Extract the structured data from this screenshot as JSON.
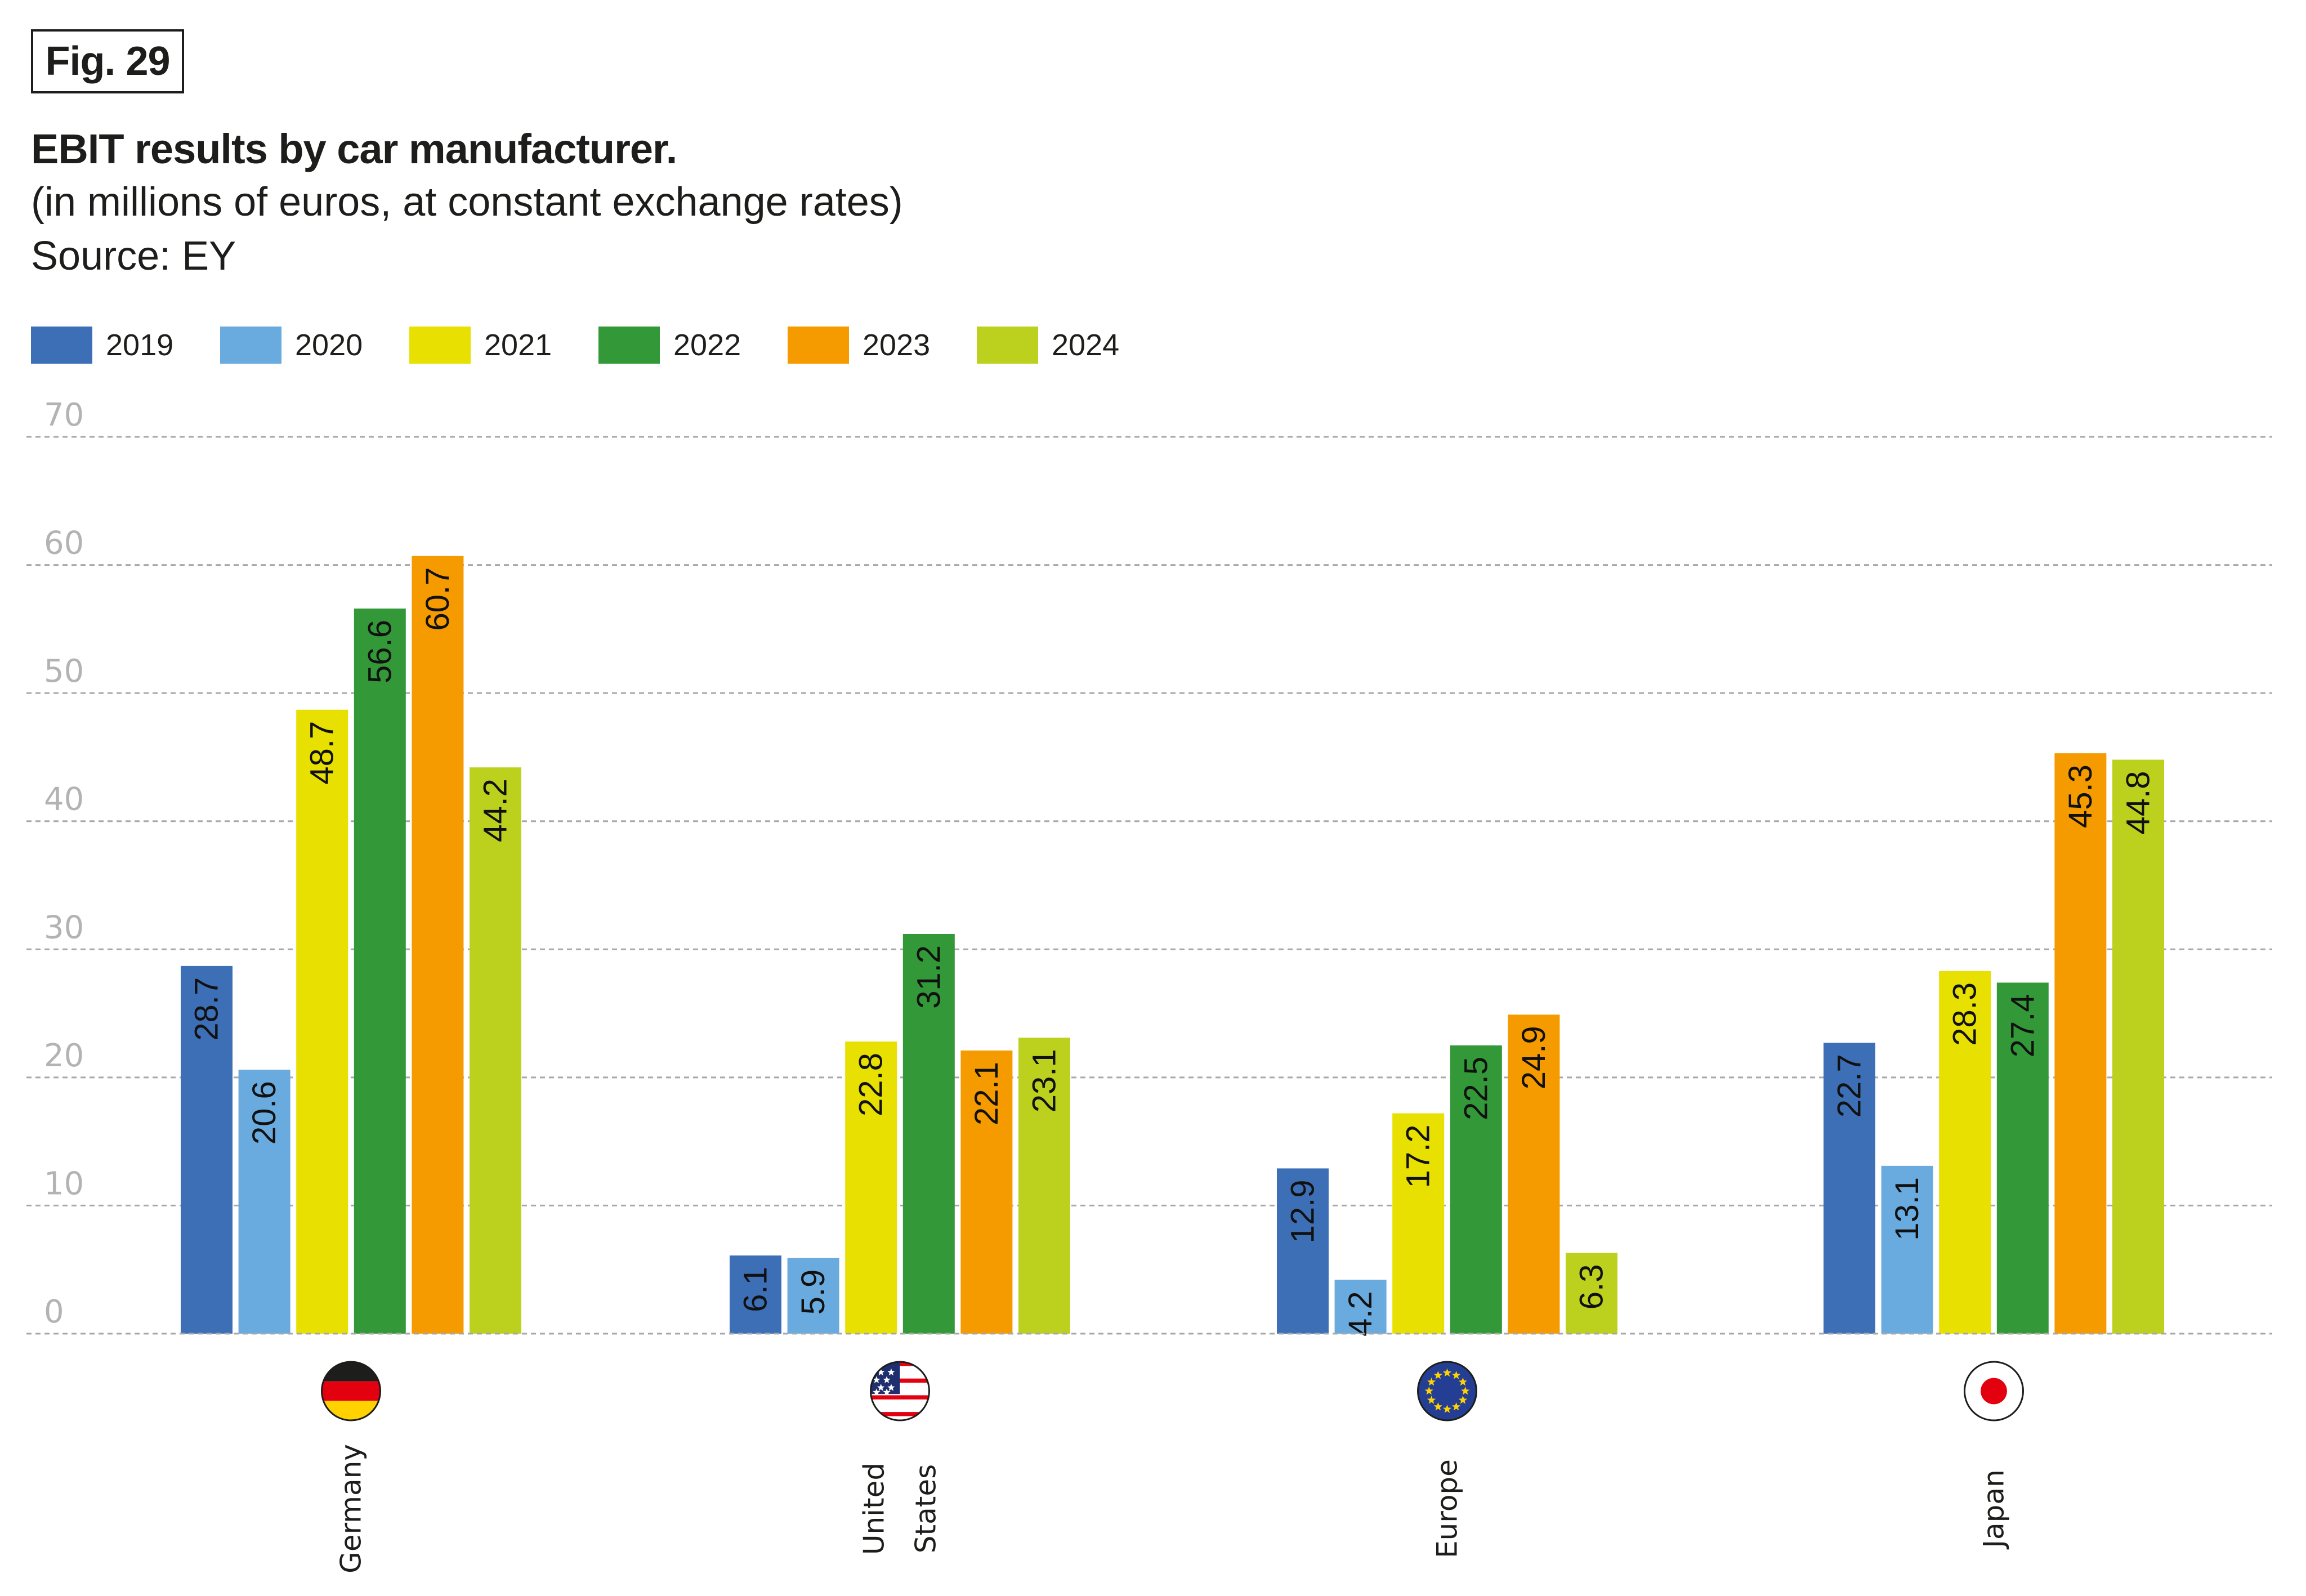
{
  "figure": {
    "number_label": "Fig. 29"
  },
  "header": {
    "title": "EBIT results by car manufacturer.",
    "subtitle": "(in millions of euros, at constant exchange rates)",
    "source": "Source: EY"
  },
  "legend": [
    {
      "label": "2019",
      "color": "#3d6fb6"
    },
    {
      "label": "2020",
      "color": "#6aabdf"
    },
    {
      "label": "2021",
      "color": "#e8e000"
    },
    {
      "label": "2022",
      "color": "#339938"
    },
    {
      "label": "2023",
      "color": "#f59b00"
    },
    {
      "label": "2024",
      "color": "#bcd11e"
    }
  ],
  "chart_data": {
    "type": "bar",
    "title": "EBIT results by car manufacturer.",
    "subtitle": "(in millions of euros, at constant exchange rates)",
    "source": "Source: EY",
    "xlabel": "",
    "ylabel": "",
    "ylim": [
      0,
      70
    ],
    "yticks": [
      0,
      10,
      20,
      30,
      40,
      50,
      60,
      70
    ],
    "grid": true,
    "legend_position": "top-left",
    "categories": [
      "Germany",
      "United States",
      "Europe",
      "Japan"
    ],
    "category_lines": [
      [
        "Germany"
      ],
      [
        "United",
        "States"
      ],
      [
        "Europe"
      ],
      [
        "Japan"
      ]
    ],
    "category_icons": [
      "germany-flag-icon",
      "usa-flag-icon",
      "eu-flag-icon",
      "japan-flag-icon"
    ],
    "series": [
      {
        "name": "2019",
        "color": "#3d6fb6",
        "values": [
          28.7,
          6.1,
          12.9,
          22.7
        ]
      },
      {
        "name": "2020",
        "color": "#6aabdf",
        "values": [
          20.6,
          5.9,
          4.2,
          13.1
        ]
      },
      {
        "name": "2021",
        "color": "#e8e000",
        "values": [
          48.7,
          22.8,
          17.2,
          28.3
        ]
      },
      {
        "name": "2022",
        "color": "#339938",
        "values": [
          56.6,
          31.2,
          22.5,
          27.4
        ]
      },
      {
        "name": "2023",
        "color": "#f59b00",
        "values": [
          60.7,
          22.1,
          24.9,
          45.3
        ]
      },
      {
        "name": "2024",
        "color": "#bcd11e",
        "values": [
          44.2,
          23.1,
          6.3,
          44.8
        ]
      }
    ]
  }
}
